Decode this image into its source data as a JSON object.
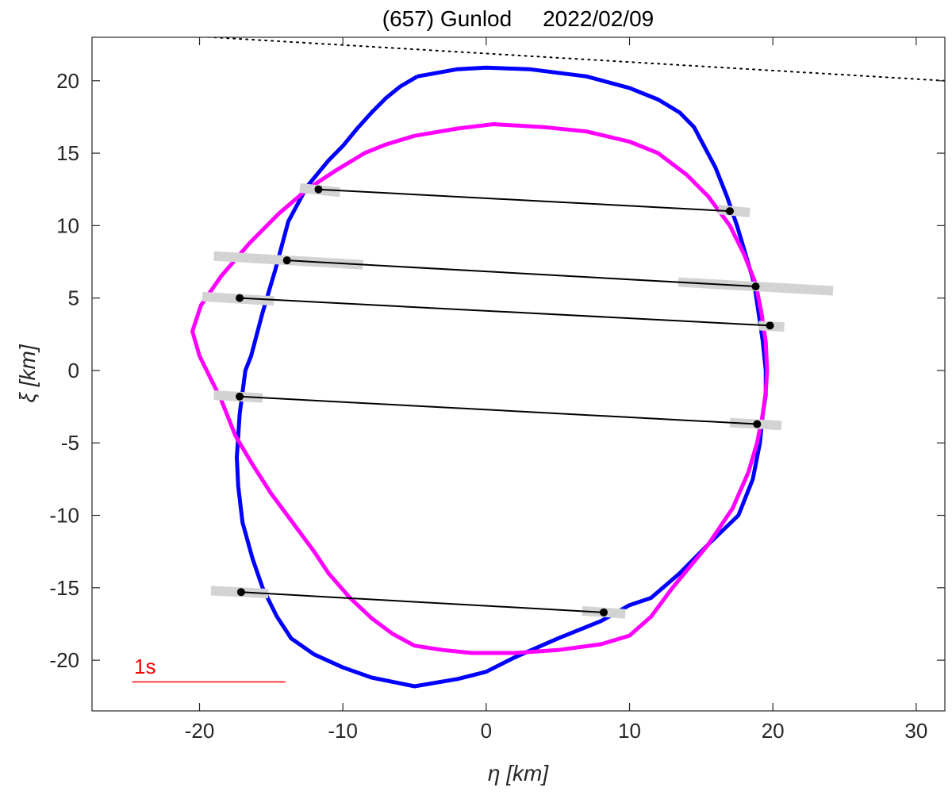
{
  "chart_data": {
    "type": "line",
    "title": "(657) Gunlod     2022/02/09",
    "xlabel": "η [km]",
    "ylabel": "ξ [km]",
    "xlim": [
      -27.5,
      32
    ],
    "ylim": [
      -23.5,
      23
    ],
    "xticks": [
      -20,
      -10,
      0,
      10,
      20,
      30
    ],
    "yticks": [
      -20,
      -15,
      -10,
      -5,
      0,
      5,
      10,
      15,
      20
    ],
    "grid": false,
    "series": [
      {
        "color": "#0000ff",
        "kind": "profile",
        "points": [
          [
            -4.8,
            20.3
          ],
          [
            -2.0,
            20.8
          ],
          [
            0,
            20.9
          ],
          [
            3.0,
            20.8
          ],
          [
            7.0,
            20.3
          ],
          [
            10.0,
            19.5
          ],
          [
            12.0,
            18.7
          ],
          [
            13.5,
            17.8
          ],
          [
            14.5,
            16.8
          ],
          [
            16.0,
            14.0
          ],
          [
            16.8,
            12.0
          ],
          [
            17.5,
            10.0
          ],
          [
            18.1,
            8.0
          ],
          [
            18.7,
            6.0
          ],
          [
            19.0,
            4.0
          ],
          [
            19.3,
            2.0
          ],
          [
            19.5,
            0.0
          ],
          [
            19.5,
            -1.7
          ],
          [
            19.3,
            -3.0
          ],
          [
            19.1,
            -5.0
          ],
          [
            18.6,
            -7.5
          ],
          [
            17.6,
            -10.0
          ],
          [
            15.5,
            -12.0
          ],
          [
            13.5,
            -14.0
          ],
          [
            11.5,
            -15.7
          ],
          [
            10.0,
            -16.2
          ],
          [
            8.0,
            -17.3
          ],
          [
            5.0,
            -18.5
          ],
          [
            2.0,
            -19.8
          ],
          [
            0.0,
            -20.8
          ],
          [
            -2.0,
            -21.3
          ],
          [
            -5.0,
            -21.8
          ],
          [
            -6.0,
            -21.6
          ],
          [
            -8.0,
            -21.2
          ],
          [
            -10.0,
            -20.5
          ],
          [
            -12.0,
            -19.6
          ],
          [
            -13.6,
            -18.5
          ],
          [
            -14.6,
            -17.0
          ],
          [
            -15.6,
            -15.0
          ],
          [
            -16.3,
            -13.0
          ],
          [
            -17.0,
            -10.5
          ],
          [
            -17.3,
            -8.0
          ],
          [
            -17.4,
            -6.0
          ],
          [
            -17.2,
            -3.0
          ],
          [
            -16.8,
            0.0
          ],
          [
            -16.4,
            1.0
          ],
          [
            -15.6,
            4.0
          ],
          [
            -14.7,
            7.0
          ],
          [
            -13.8,
            10.3
          ],
          [
            -12.5,
            12.7
          ],
          [
            -11.0,
            14.5
          ],
          [
            -10.0,
            15.5
          ],
          [
            -9.0,
            16.7
          ],
          [
            -8.0,
            17.8
          ],
          [
            -7.0,
            18.8
          ],
          [
            -6.0,
            19.6
          ],
          [
            -4.8,
            20.3
          ]
        ]
      },
      {
        "color": "#ff00ff",
        "kind": "profile",
        "points": [
          [
            -5.0,
            16.2
          ],
          [
            -2.0,
            16.7
          ],
          [
            0.5,
            17.0
          ],
          [
            4.0,
            16.8
          ],
          [
            7.0,
            16.5
          ],
          [
            10.0,
            15.8
          ],
          [
            12.0,
            15.0
          ],
          [
            14.0,
            13.5
          ],
          [
            15.5,
            12.0
          ],
          [
            17.0,
            10.0
          ],
          [
            18.0,
            8.0
          ],
          [
            18.8,
            6.0
          ],
          [
            19.2,
            4.0
          ],
          [
            19.5,
            2.0
          ],
          [
            19.6,
            0.0
          ],
          [
            19.5,
            -1.5
          ],
          [
            19.3,
            -3.0
          ],
          [
            18.9,
            -5.0
          ],
          [
            18.3,
            -7.0
          ],
          [
            17.2,
            -9.5
          ],
          [
            15.5,
            -12.0
          ],
          [
            13.0,
            -15.0
          ],
          [
            11.5,
            -17.0
          ],
          [
            10.0,
            -18.3
          ],
          [
            8.0,
            -18.9
          ],
          [
            5.0,
            -19.3
          ],
          [
            2.0,
            -19.5
          ],
          [
            -1.0,
            -19.5
          ],
          [
            -3.0,
            -19.3
          ],
          [
            -5.0,
            -19.0
          ],
          [
            -6.5,
            -18.2
          ],
          [
            -8.0,
            -17.1
          ],
          [
            -9.5,
            -15.7
          ],
          [
            -11.0,
            -14.0
          ],
          [
            -12.0,
            -12.5
          ],
          [
            -13.5,
            -10.5
          ],
          [
            -15.0,
            -8.5
          ],
          [
            -16.3,
            -6.5
          ],
          [
            -17.5,
            -4.5
          ],
          [
            -18.5,
            -2.0
          ],
          [
            -20.0,
            1.0
          ],
          [
            -20.5,
            2.7
          ],
          [
            -19.9,
            4.5
          ],
          [
            -18.5,
            6.5
          ],
          [
            -16.5,
            8.8
          ],
          [
            -14.5,
            10.8
          ],
          [
            -12.5,
            12.5
          ],
          [
            -10.5,
            13.8
          ],
          [
            -8.5,
            15.0
          ],
          [
            -7.0,
            15.6
          ],
          [
            -5.0,
            16.2
          ]
        ]
      }
    ],
    "chords": [
      {
        "start": [
          -11.7,
          12.5
        ],
        "end": [
          17.0,
          11.0
        ],
        "err_start": [
          [
            -13.0,
            12.6
          ],
          [
            -10.2,
            12.3
          ]
        ],
        "err_end": [
          [
            16.2,
            11.1
          ],
          [
            18.4,
            10.9
          ]
        ]
      },
      {
        "start": [
          -13.9,
          7.6
        ],
        "end": [
          18.8,
          5.8
        ],
        "err_start": [
          [
            -19.0,
            7.9
          ],
          [
            -8.6,
            7.3
          ]
        ],
        "err_end": [
          [
            13.4,
            6.1
          ],
          [
            24.2,
            5.5
          ]
        ]
      },
      {
        "start": [
          -17.2,
          5.0
        ],
        "end": [
          19.8,
          3.1
        ],
        "err_start": [
          [
            -19.8,
            5.1
          ],
          [
            -14.8,
            4.8
          ]
        ],
        "err_end": [
          [
            19.0,
            3.1
          ],
          [
            20.8,
            3.0
          ]
        ]
      },
      {
        "start": [
          -17.2,
          -1.8
        ],
        "end": [
          18.9,
          -3.7
        ],
        "err_start": [
          [
            -19.0,
            -1.7
          ],
          [
            -15.6,
            -1.9
          ]
        ],
        "err_end": [
          [
            17.0,
            -3.6
          ],
          [
            20.6,
            -3.8
          ]
        ]
      },
      {
        "start": [
          -17.1,
          -15.3
        ],
        "end": [
          8.2,
          -16.7
        ],
        "err_start": [
          [
            -19.2,
            -15.2
          ],
          [
            -15.2,
            -15.4
          ]
        ],
        "err_end": [
          [
            6.7,
            -16.6
          ],
          [
            9.7,
            -16.8
          ]
        ]
      }
    ],
    "chord_color": "#000000",
    "error_color": "#d3d3d3",
    "dotted_line": {
      "from": [
        -22.5,
        23.2
      ],
      "to": [
        32,
        20.0
      ],
      "color": "#000000"
    },
    "scale_bar": {
      "label": "1s",
      "color": "#ff0000",
      "from": [
        -24.7,
        -21.5
      ],
      "to": [
        -14.0,
        -21.5
      ]
    }
  }
}
